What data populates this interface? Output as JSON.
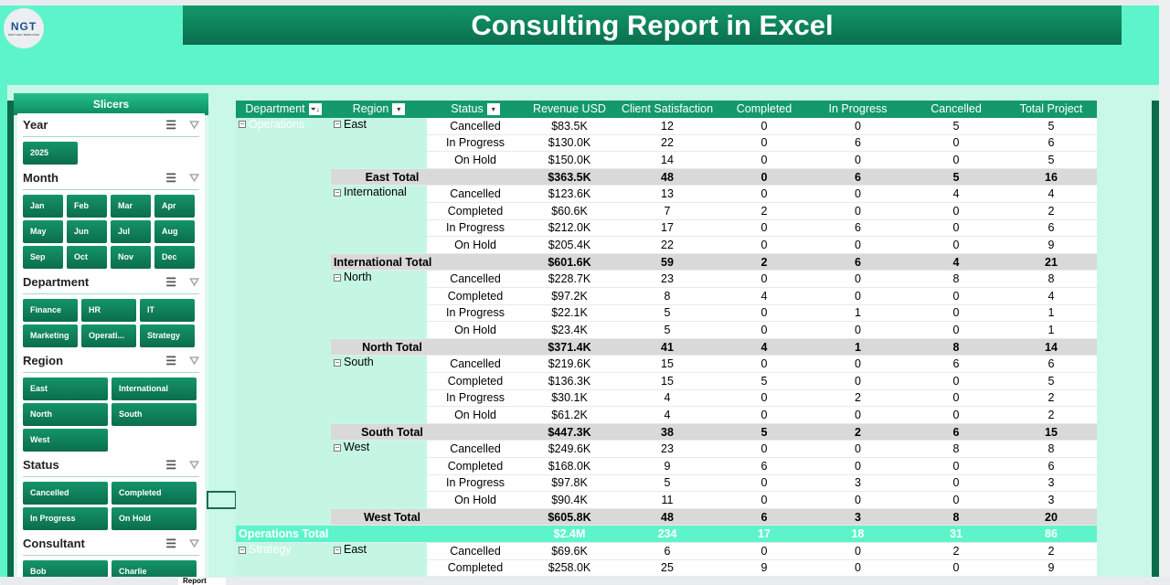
{
  "title": "Consulting Report in Excel",
  "logo": {
    "text": "NGT",
    "sub": "NEXT GEN TEMPLATES"
  },
  "slicers": {
    "header": "Slicers",
    "sections": [
      {
        "name": "Year",
        "cls": "w3",
        "items": [
          "2025"
        ]
      },
      {
        "name": "Month",
        "cls": "w4",
        "items": [
          "Jan",
          "Feb",
          "Mar",
          "Apr",
          "May",
          "Jun",
          "Jul",
          "Aug",
          "Sep",
          "Oct",
          "Nov",
          "Dec"
        ]
      },
      {
        "name": "Department",
        "cls": "w3",
        "items": [
          "Finance",
          "HR",
          "IT",
          "Marketing",
          "Operati...",
          "Strategy"
        ]
      },
      {
        "name": "Region",
        "cls": "w2",
        "items": [
          "East",
          "International",
          "North",
          "South",
          "West"
        ]
      },
      {
        "name": "Status",
        "cls": "w2",
        "items": [
          "Cancelled",
          "Completed",
          "In Progress",
          "On Hold"
        ]
      },
      {
        "name": "Consultant",
        "cls": "w2",
        "items": [
          "Bob",
          "Charlie"
        ]
      }
    ]
  },
  "table": {
    "headers": [
      "Department",
      "Region",
      "Status",
      "Revenue USD",
      "Client Satisfaction",
      "Completed",
      "In Progress",
      "Cancelled",
      "Total Project"
    ],
    "groups": [
      {
        "dept": "Operations",
        "regions": [
          {
            "region": "East",
            "rows": [
              [
                "Cancelled",
                "$83.5K",
                12,
                0,
                0,
                5,
                5
              ],
              [
                "In Progress",
                "$130.0K",
                22,
                0,
                6,
                0,
                6
              ],
              [
                "On Hold",
                "$150.0K",
                14,
                0,
                0,
                0,
                5
              ]
            ],
            "total": [
              "East Total",
              "$363.5K",
              48,
              0,
              6,
              5,
              16
            ]
          },
          {
            "region": "International",
            "rows": [
              [
                "Cancelled",
                "$123.6K",
                13,
                0,
                0,
                4,
                4
              ],
              [
                "Completed",
                "$60.6K",
                7,
                2,
                0,
                0,
                2
              ],
              [
                "In Progress",
                "$212.0K",
                17,
                0,
                6,
                0,
                6
              ],
              [
                "On Hold",
                "$205.4K",
                22,
                0,
                0,
                0,
                9
              ]
            ],
            "total": [
              "International Total",
              "$601.6K",
              59,
              2,
              6,
              4,
              21
            ]
          },
          {
            "region": "North",
            "rows": [
              [
                "Cancelled",
                "$228.7K",
                23,
                0,
                0,
                8,
                8
              ],
              [
                "Completed",
                "$97.2K",
                8,
                4,
                0,
                0,
                4
              ],
              [
                "In Progress",
                "$22.1K",
                5,
                0,
                1,
                0,
                1
              ],
              [
                "On Hold",
                "$23.4K",
                5,
                0,
                0,
                0,
                1
              ]
            ],
            "total": [
              "North Total",
              "$371.4K",
              41,
              4,
              1,
              8,
              14
            ]
          },
          {
            "region": "South",
            "rows": [
              [
                "Cancelled",
                "$219.6K",
                15,
                0,
                0,
                6,
                6
              ],
              [
                "Completed",
                "$136.3K",
                15,
                5,
                0,
                0,
                5
              ],
              [
                "In Progress",
                "$30.1K",
                4,
                0,
                2,
                0,
                2
              ],
              [
                "On Hold",
                "$61.2K",
                4,
                0,
                0,
                0,
                2
              ]
            ],
            "total": [
              "South Total",
              "$447.3K",
              38,
              5,
              2,
              6,
              15
            ]
          },
          {
            "region": "West",
            "rows": [
              [
                "Cancelled",
                "$249.6K",
                23,
                0,
                0,
                8,
                8
              ],
              [
                "Completed",
                "$168.0K",
                9,
                6,
                0,
                0,
                6
              ],
              [
                "In Progress",
                "$97.8K",
                5,
                0,
                3,
                0,
                3
              ],
              [
                "On Hold",
                "$90.4K",
                11,
                0,
                0,
                0,
                3
              ]
            ],
            "total": [
              "West Total",
              "$605.8K",
              48,
              6,
              3,
              8,
              20
            ]
          }
        ],
        "total": [
          "Operations Total",
          "$2.4M",
          234,
          17,
          18,
          31,
          86
        ]
      },
      {
        "dept": "Strategy",
        "regions": [
          {
            "region": "East",
            "rows": [
              [
                "Cancelled",
                "$69.6K",
                6,
                0,
                0,
                2,
                2
              ],
              [
                "Completed",
                "$258.0K",
                25,
                9,
                0,
                0,
                9
              ]
            ]
          }
        ]
      }
    ]
  },
  "sheet_tab": "Report"
}
